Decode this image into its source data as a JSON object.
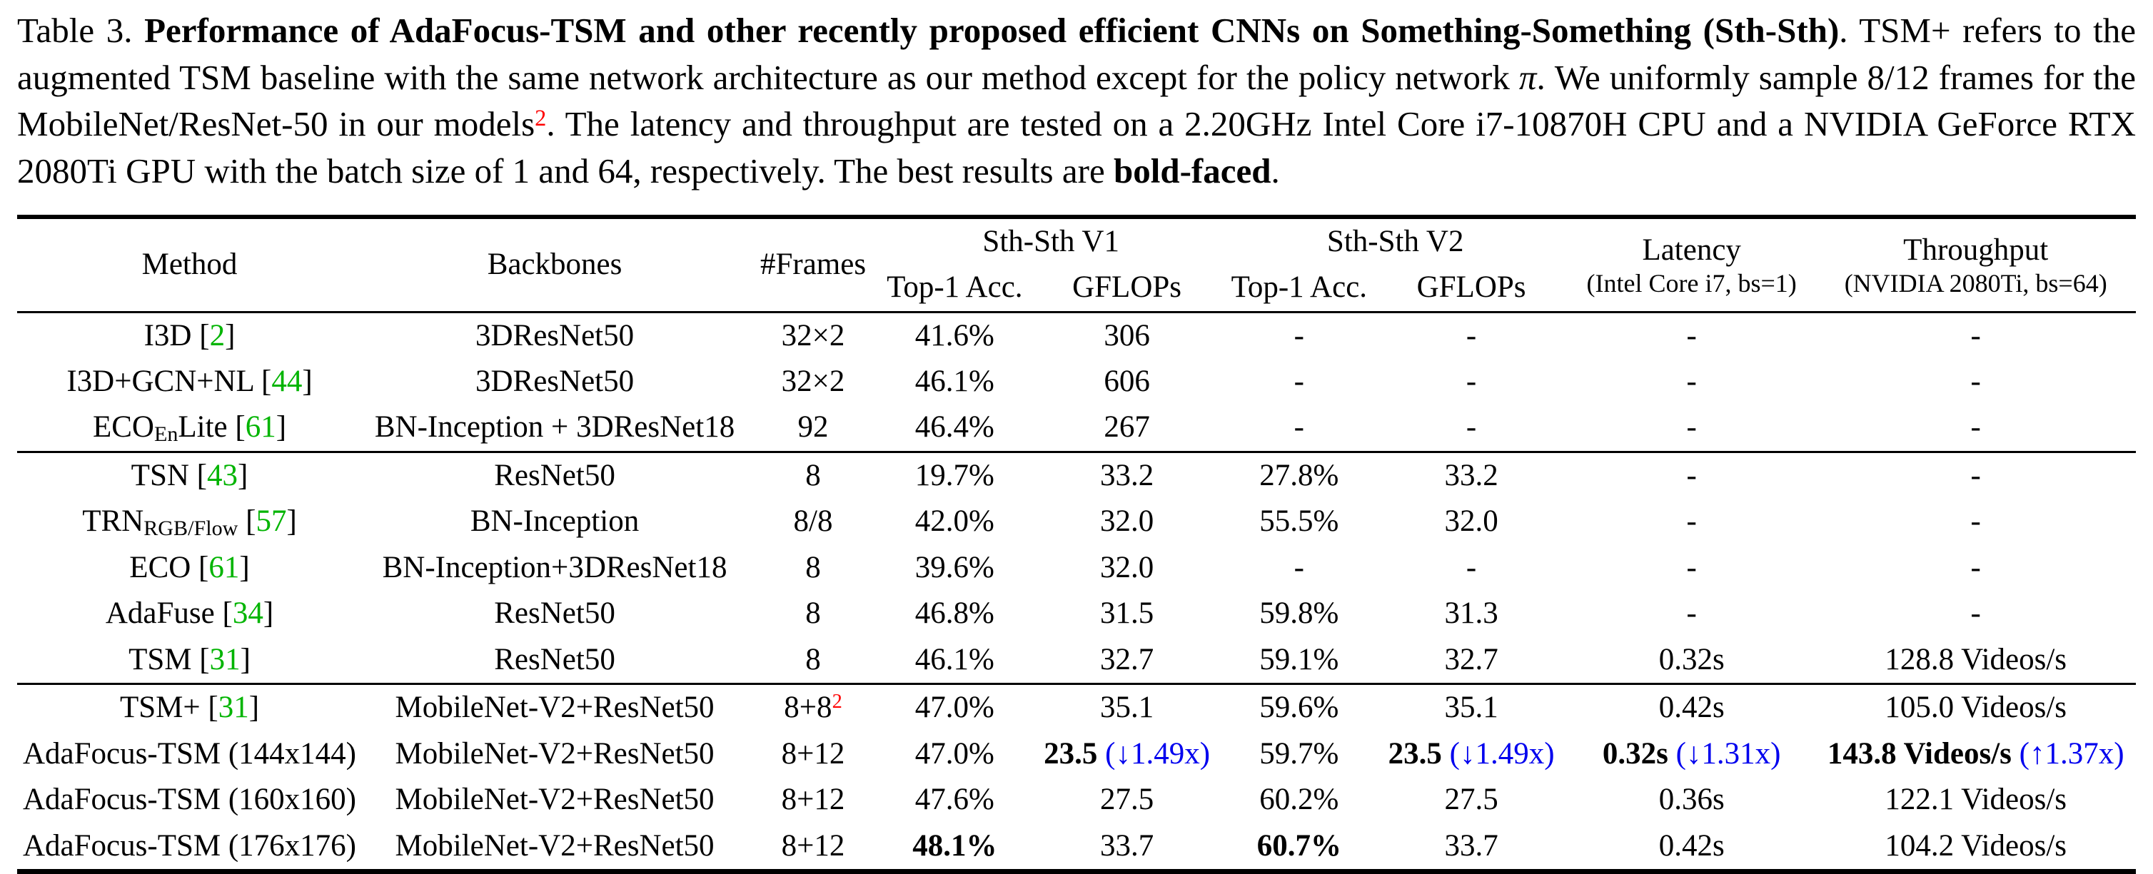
{
  "colors": {
    "citation_green": "#00b400",
    "footnote_red": "#ff0000",
    "highlight_blue": "#0000ee",
    "text": "#000000",
    "background": "#ffffff"
  },
  "caption": {
    "segments": [
      {
        "t": "Table 3. "
      },
      {
        "t": "Performance of AdaFocus-TSM and other recently proposed efficient CNNs on Something-Something (Sth-Sth)",
        "s": "b"
      },
      {
        "t": ". TSM+ refers to the augmented TSM baseline with the same network architecture as our method except for the policy network "
      },
      {
        "t": "π",
        "s": "i"
      },
      {
        "t": ". We uniformly sample 8/12 frames for the MobileNet/ResNet-50 in our models"
      },
      {
        "t": "2",
        "s": "redsup"
      },
      {
        "t": ". The latency and throughput are tested on a 2.20GHz Intel Core i7-10870H CPU and a NVIDIA GeForce RTX 2080Ti GPU with the batch size of 1 and 64, respectively. The best results are "
      },
      {
        "t": "bold-faced",
        "s": "b"
      },
      {
        "t": "."
      }
    ]
  },
  "table": {
    "column_keys": [
      "method",
      "backbones",
      "frames",
      "v1-top1-acc",
      "v1-gflops",
      "v2-top1-acc",
      "v2-gflops",
      "latency",
      "throughput"
    ],
    "header_row1": [
      {
        "name": "method",
        "rowspan": 2,
        "segments": [
          {
            "t": "Method"
          }
        ]
      },
      {
        "name": "backbones",
        "rowspan": 2,
        "segments": [
          {
            "t": "Backbones"
          }
        ]
      },
      {
        "name": "frames",
        "rowspan": 2,
        "segments": [
          {
            "t": "#Frames"
          }
        ]
      },
      {
        "name": "sth-sth-v1",
        "colspan": 2,
        "segments": [
          {
            "t": "Sth-Sth V1"
          }
        ]
      },
      {
        "name": "sth-sth-v2",
        "colspan": 2,
        "segments": [
          {
            "t": "Sth-Sth V2"
          }
        ]
      },
      {
        "name": "latency",
        "rowspan": 2,
        "segments": [
          {
            "t": "Latency"
          }
        ],
        "subline": "(Intel Core i7, bs=1)"
      },
      {
        "name": "throughput",
        "rowspan": 2,
        "segments": [
          {
            "t": "Throughput"
          }
        ],
        "subline": "(NVIDIA 2080Ti, bs=64)"
      }
    ],
    "header_row2": [
      {
        "name": "v1-top1-acc",
        "segments": [
          {
            "t": "Top-1 Acc."
          }
        ]
      },
      {
        "name": "v1-gflops",
        "segments": [
          {
            "t": "GFLOPs"
          }
        ]
      },
      {
        "name": "v2-top1-acc",
        "segments": [
          {
            "t": "Top-1 Acc."
          }
        ]
      },
      {
        "name": "v2-gflops",
        "segments": [
          {
            "t": "GFLOPs"
          }
        ]
      }
    ],
    "groups": [
      {
        "rows": [
          {
            "cells": [
              [
                {
                  "t": "I3D ["
                },
                {
                  "t": "2",
                  "s": "g"
                },
                {
                  "t": "]"
                }
              ],
              [
                {
                  "t": "3DResNet50"
                }
              ],
              [
                {
                  "t": "32×2"
                }
              ],
              [
                {
                  "t": "41.6%"
                }
              ],
              [
                {
                  "t": "306"
                }
              ],
              [
                {
                  "t": "-"
                }
              ],
              [
                {
                  "t": "-"
                }
              ],
              [
                {
                  "t": "-"
                }
              ],
              [
                {
                  "t": "-"
                }
              ]
            ]
          },
          {
            "cells": [
              [
                {
                  "t": "I3D+GCN+NL ["
                },
                {
                  "t": "44",
                  "s": "g"
                },
                {
                  "t": "]"
                }
              ],
              [
                {
                  "t": "3DResNet50"
                }
              ],
              [
                {
                  "t": "32×2"
                }
              ],
              [
                {
                  "t": "46.1%"
                }
              ],
              [
                {
                  "t": "606"
                }
              ],
              [
                {
                  "t": "-"
                }
              ],
              [
                {
                  "t": "-"
                }
              ],
              [
                {
                  "t": "-"
                }
              ],
              [
                {
                  "t": "-"
                }
              ]
            ]
          },
          {
            "cells": [
              [
                {
                  "t": "ECO"
                },
                {
                  "t": "En",
                  "s": "sub"
                },
                {
                  "t": "Lite ["
                },
                {
                  "t": "61",
                  "s": "g"
                },
                {
                  "t": "]"
                }
              ],
              [
                {
                  "t": "BN-Inception + 3DResNet18"
                }
              ],
              [
                {
                  "t": "92"
                }
              ],
              [
                {
                  "t": "46.4%"
                }
              ],
              [
                {
                  "t": "267"
                }
              ],
              [
                {
                  "t": "-"
                }
              ],
              [
                {
                  "t": "-"
                }
              ],
              [
                {
                  "t": "-"
                }
              ],
              [
                {
                  "t": "-"
                }
              ]
            ]
          }
        ]
      },
      {
        "rows": [
          {
            "cells": [
              [
                {
                  "t": "TSN ["
                },
                {
                  "t": "43",
                  "s": "g"
                },
                {
                  "t": "]"
                }
              ],
              [
                {
                  "t": "ResNet50"
                }
              ],
              [
                {
                  "t": "8"
                }
              ],
              [
                {
                  "t": "19.7%"
                }
              ],
              [
                {
                  "t": "33.2"
                }
              ],
              [
                {
                  "t": "27.8%"
                }
              ],
              [
                {
                  "t": "33.2"
                }
              ],
              [
                {
                  "t": "-"
                }
              ],
              [
                {
                  "t": "-"
                }
              ]
            ]
          },
          {
            "cells": [
              [
                {
                  "t": "TRN"
                },
                {
                  "t": "RGB/Flow",
                  "s": "sub"
                },
                {
                  "t": " ["
                },
                {
                  "t": "57",
                  "s": "g"
                },
                {
                  "t": "]"
                }
              ],
              [
                {
                  "t": "BN-Inception"
                }
              ],
              [
                {
                  "t": "8/8"
                }
              ],
              [
                {
                  "t": "42.0%"
                }
              ],
              [
                {
                  "t": "32.0"
                }
              ],
              [
                {
                  "t": "55.5%"
                }
              ],
              [
                {
                  "t": "32.0"
                }
              ],
              [
                {
                  "t": "-"
                }
              ],
              [
                {
                  "t": "-"
                }
              ]
            ]
          },
          {
            "cells": [
              [
                {
                  "t": "ECO ["
                },
                {
                  "t": "61",
                  "s": "g"
                },
                {
                  "t": "]"
                }
              ],
              [
                {
                  "t": "BN-Inception+3DResNet18"
                }
              ],
              [
                {
                  "t": "8"
                }
              ],
              [
                {
                  "t": "39.6%"
                }
              ],
              [
                {
                  "t": "32.0"
                }
              ],
              [
                {
                  "t": "-"
                }
              ],
              [
                {
                  "t": "-"
                }
              ],
              [
                {
                  "t": "-"
                }
              ],
              [
                {
                  "t": "-"
                }
              ]
            ]
          },
          {
            "cells": [
              [
                {
                  "t": "AdaFuse ["
                },
                {
                  "t": "34",
                  "s": "g"
                },
                {
                  "t": "]"
                }
              ],
              [
                {
                  "t": "ResNet50"
                }
              ],
              [
                {
                  "t": "8"
                }
              ],
              [
                {
                  "t": "46.8%"
                }
              ],
              [
                {
                  "t": "31.5"
                }
              ],
              [
                {
                  "t": "59.8%"
                }
              ],
              [
                {
                  "t": "31.3"
                }
              ],
              [
                {
                  "t": "-"
                }
              ],
              [
                {
                  "t": "-"
                }
              ]
            ]
          },
          {
            "cells": [
              [
                {
                  "t": "TSM ["
                },
                {
                  "t": "31",
                  "s": "g"
                },
                {
                  "t": "]"
                }
              ],
              [
                {
                  "t": "ResNet50"
                }
              ],
              [
                {
                  "t": "8"
                }
              ],
              [
                {
                  "t": "46.1%"
                }
              ],
              [
                {
                  "t": "32.7"
                }
              ],
              [
                {
                  "t": "59.1%"
                }
              ],
              [
                {
                  "t": "32.7"
                }
              ],
              [
                {
                  "t": "0.32s"
                }
              ],
              [
                {
                  "t": "128.8 Videos/s"
                }
              ]
            ]
          }
        ]
      },
      {
        "rows": [
          {
            "cells": [
              [
                {
                  "t": "TSM+ ["
                },
                {
                  "t": "31",
                  "s": "g"
                },
                {
                  "t": "]"
                }
              ],
              [
                {
                  "t": "MobileNet-V2+ResNet50"
                }
              ],
              [
                {
                  "t": "8+8"
                },
                {
                  "t": "2",
                  "s": "redsup"
                }
              ],
              [
                {
                  "t": "47.0%"
                }
              ],
              [
                {
                  "t": "35.1"
                }
              ],
              [
                {
                  "t": "59.6%"
                }
              ],
              [
                {
                  "t": "35.1"
                }
              ],
              [
                {
                  "t": "0.42s"
                }
              ],
              [
                {
                  "t": "105.0 Videos/s"
                }
              ]
            ]
          },
          {
            "cells": [
              [
                {
                  "t": "AdaFocus-TSM (144x144)"
                }
              ],
              [
                {
                  "t": "MobileNet-V2+ResNet50"
                }
              ],
              [
                {
                  "t": "8+12"
                }
              ],
              [
                {
                  "t": "47.0%"
                }
              ],
              [
                {
                  "t": "23.5",
                  "s": "b"
                },
                {
                  "t": " "
                },
                {
                  "t": "(↓1.49x)",
                  "s": "blue"
                }
              ],
              [
                {
                  "t": "59.7%"
                }
              ],
              [
                {
                  "t": "23.5",
                  "s": "b"
                },
                {
                  "t": " "
                },
                {
                  "t": "(↓1.49x)",
                  "s": "blue"
                }
              ],
              [
                {
                  "t": "0.32s",
                  "s": "b"
                },
                {
                  "t": " "
                },
                {
                  "t": "(↓1.31x)",
                  "s": "blue"
                }
              ],
              [
                {
                  "t": "143.8 Videos/s",
                  "s": "b"
                },
                {
                  "t": " "
                },
                {
                  "t": "(↑1.37x)",
                  "s": "blue"
                }
              ]
            ]
          },
          {
            "cells": [
              [
                {
                  "t": "AdaFocus-TSM (160x160)"
                }
              ],
              [
                {
                  "t": "MobileNet-V2+ResNet50"
                }
              ],
              [
                {
                  "t": "8+12"
                }
              ],
              [
                {
                  "t": "47.6%"
                }
              ],
              [
                {
                  "t": "27.5"
                }
              ],
              [
                {
                  "t": "60.2%"
                }
              ],
              [
                {
                  "t": "27.5"
                }
              ],
              [
                {
                  "t": "0.36s"
                }
              ],
              [
                {
                  "t": "122.1 Videos/s"
                }
              ]
            ]
          },
          {
            "cells": [
              [
                {
                  "t": "AdaFocus-TSM (176x176)"
                }
              ],
              [
                {
                  "t": "MobileNet-V2+ResNet50"
                }
              ],
              [
                {
                  "t": "8+12"
                }
              ],
              [
                {
                  "t": "48.1%",
                  "s": "b"
                }
              ],
              [
                {
                  "t": "33.7"
                }
              ],
              [
                {
                  "t": "60.7%",
                  "s": "b"
                }
              ],
              [
                {
                  "t": "33.7"
                }
              ],
              [
                {
                  "t": "0.42s"
                }
              ],
              [
                {
                  "t": "104.2 Videos/s"
                }
              ]
            ]
          }
        ]
      }
    ]
  }
}
